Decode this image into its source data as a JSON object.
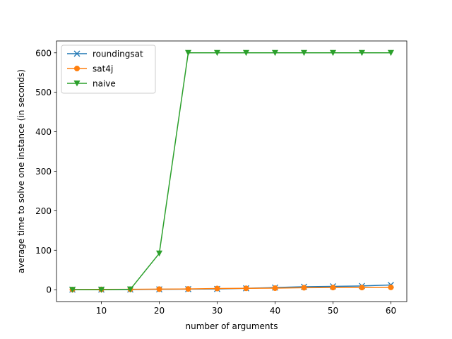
{
  "chart_data": {
    "type": "line",
    "title": "",
    "xlabel": "number of arguments",
    "ylabel": "average time to solve one instance (in seconds)",
    "x": [
      5,
      10,
      15,
      20,
      25,
      30,
      35,
      40,
      45,
      50,
      55,
      60
    ],
    "xlim": [
      2.25,
      62.75
    ],
    "ylim": [
      -30,
      630
    ],
    "xticks": [
      10,
      20,
      30,
      40,
      50,
      60
    ],
    "yticks": [
      0,
      100,
      200,
      300,
      400,
      500,
      600
    ],
    "grid": false,
    "legend_position": "top-left",
    "series": [
      {
        "name": "roundingsat",
        "color": "#1f77b4",
        "marker": "x",
        "values": [
          0.3,
          0.4,
          0.5,
          1.0,
          1.5,
          2.0,
          3.5,
          5.5,
          7.5,
          8.5,
          9.5,
          12
        ]
      },
      {
        "name": "sat4j",
        "color": "#ff7f0e",
        "marker": "circle",
        "values": [
          0.5,
          0.8,
          1.0,
          1.5,
          2.0,
          3.0,
          3.5,
          4.0,
          5.0,
          5.5,
          5.5,
          6.0
        ]
      },
      {
        "name": "naive",
        "color": "#2ca02c",
        "marker": "triangle-down",
        "values": [
          0,
          0,
          1,
          92,
          600,
          600,
          600,
          600,
          600,
          600,
          600,
          600
        ]
      }
    ]
  }
}
